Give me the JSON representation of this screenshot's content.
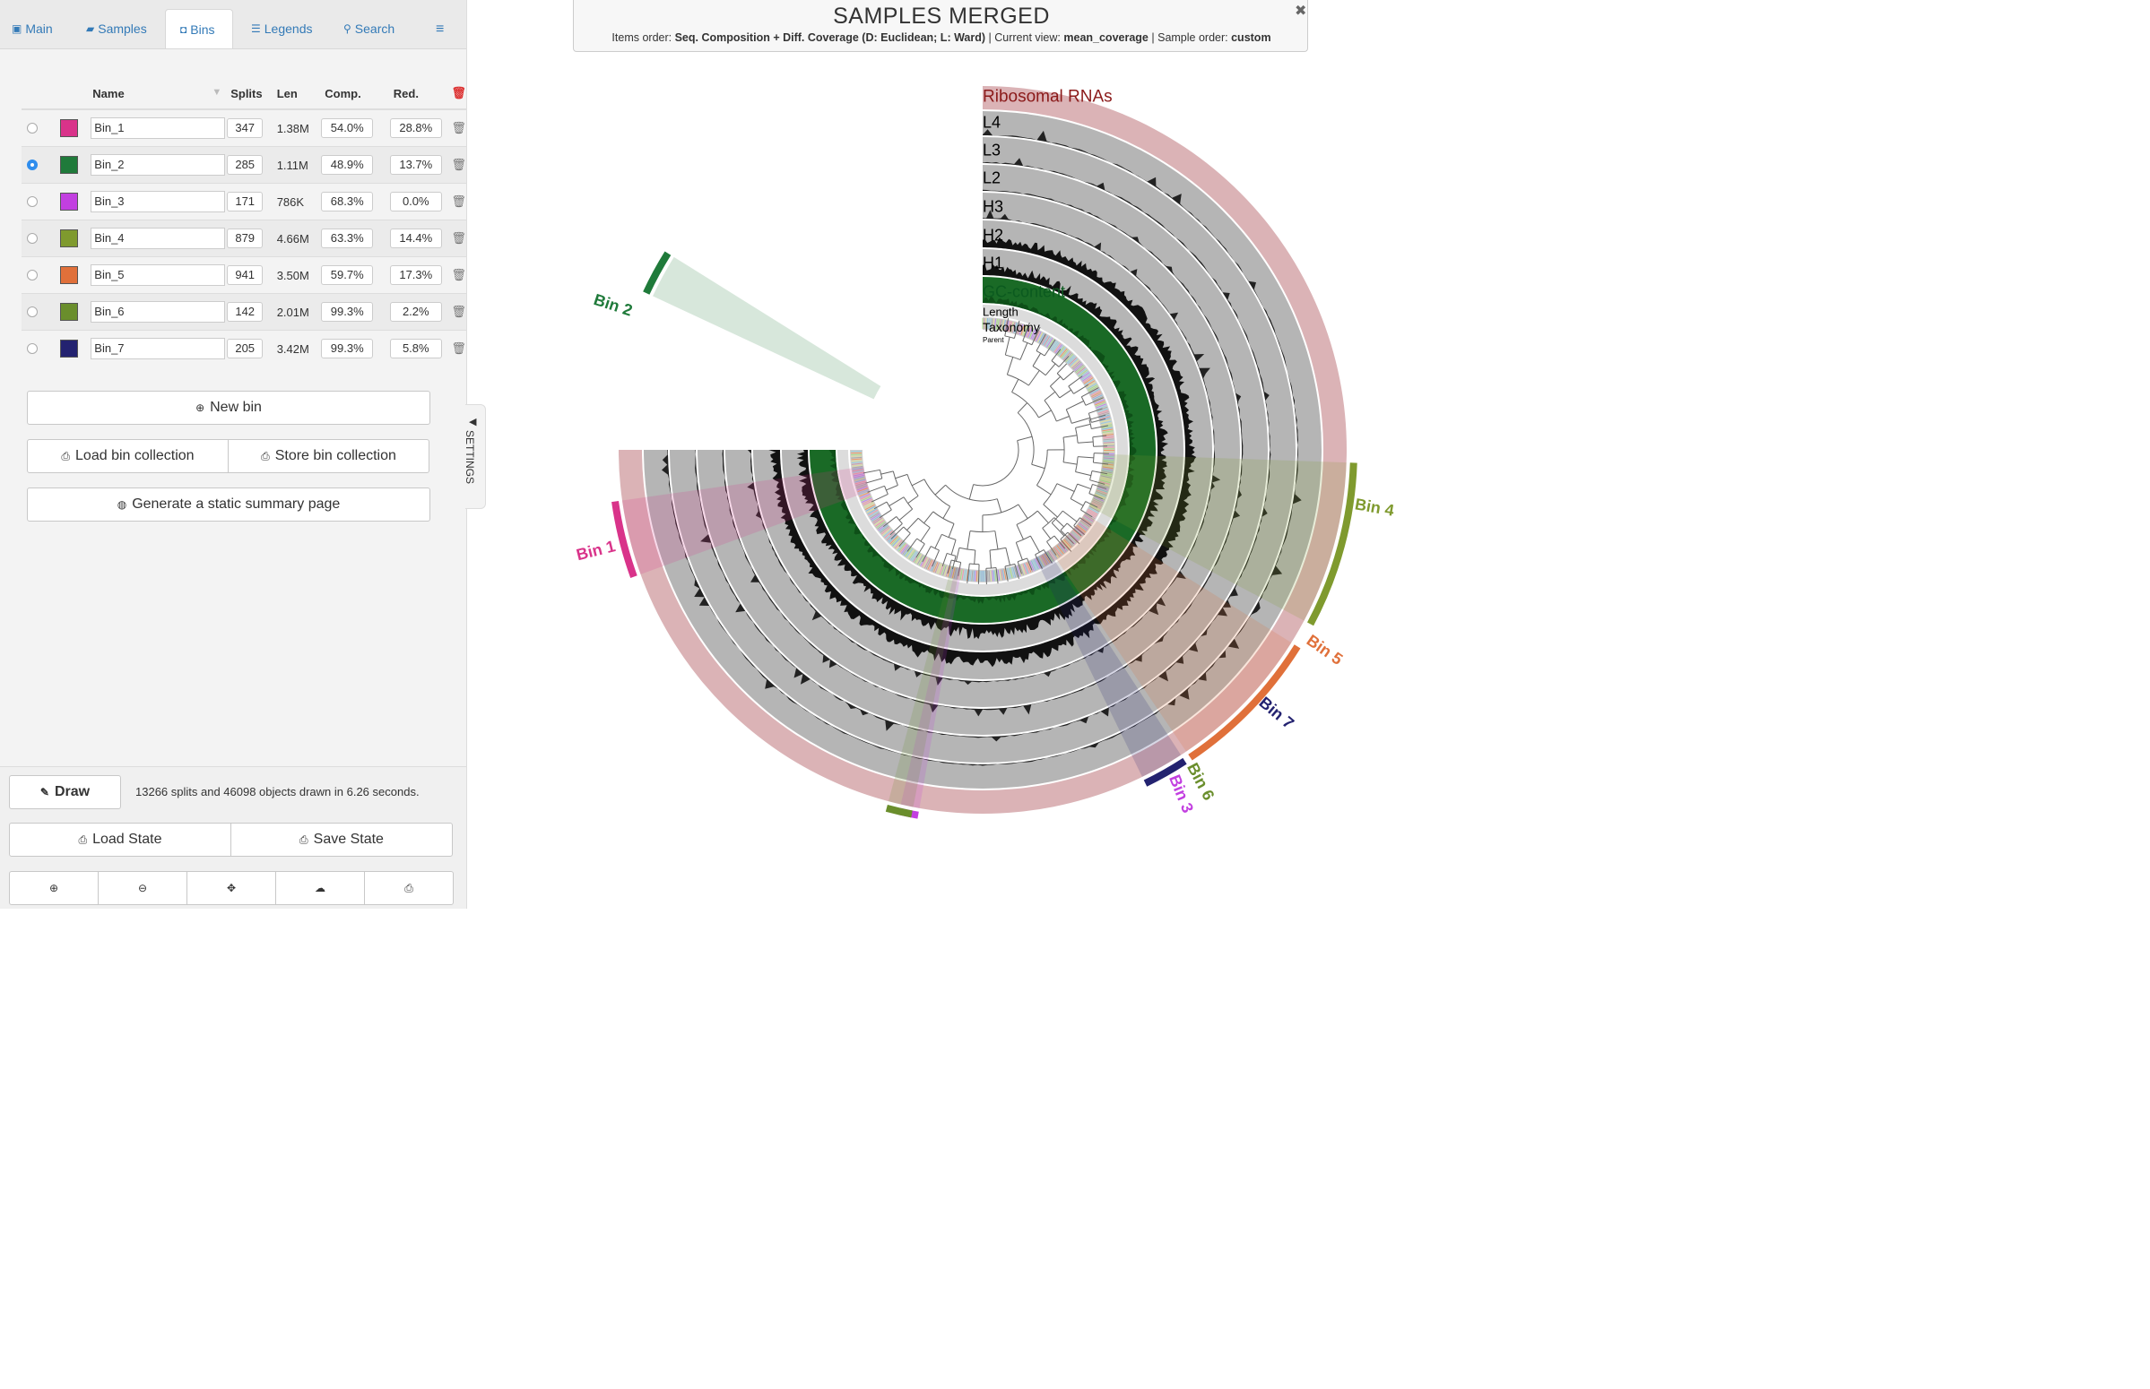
{
  "tabs": [
    {
      "label": "Main",
      "icon": "image-icon"
    },
    {
      "label": "Samples",
      "icon": "briefcase-icon"
    },
    {
      "label": "Bins",
      "icon": "bin-icon"
    },
    {
      "label": "Legends",
      "icon": "list-icon"
    },
    {
      "label": "Search",
      "icon": "search-icon"
    }
  ],
  "bins_table": {
    "headers": {
      "name": "Name",
      "splits": "Splits",
      "len": "Len",
      "comp": "Comp.",
      "red": "Red."
    },
    "rows": [
      {
        "name": "Bin_1",
        "color": "#d9338a",
        "splits": "347",
        "len": "1.38M",
        "comp": "54.0%",
        "red": "28.8%",
        "selected": false
      },
      {
        "name": "Bin_2",
        "color": "#1f7a3a",
        "splits": "285",
        "len": "1.11M",
        "comp": "48.9%",
        "red": "13.7%",
        "selected": true
      },
      {
        "name": "Bin_3",
        "color": "#c23fe0",
        "splits": "171",
        "len": "786K",
        "comp": "68.3%",
        "red": "0.0%",
        "selected": false
      },
      {
        "name": "Bin_4",
        "color": "#7f9a2e",
        "splits": "879",
        "len": "4.66M",
        "comp": "63.3%",
        "red": "14.4%",
        "selected": false
      },
      {
        "name": "Bin_5",
        "color": "#e0703a",
        "splits": "941",
        "len": "3.50M",
        "comp": "59.7%",
        "red": "17.3%",
        "selected": false
      },
      {
        "name": "Bin_6",
        "color": "#6a8e2c",
        "splits": "142",
        "len": "2.01M",
        "comp": "99.3%",
        "red": "2.2%",
        "selected": false
      },
      {
        "name": "Bin_7",
        "color": "#232270",
        "splits": "205",
        "len": "3.42M",
        "comp": "99.3%",
        "red": "5.8%",
        "selected": false
      }
    ]
  },
  "buttons": {
    "new_bin": "New bin",
    "load_collection": "Load bin collection",
    "store_collection": "Store bin collection",
    "static_summary": "Generate a static summary page",
    "draw": "Draw",
    "load_state": "Load State",
    "save_state": "Save State"
  },
  "draw_status": "13266 splits and 46098 objects drawn in 6.26 seconds.",
  "settings_label": "SETTINGS",
  "header": {
    "title": "SAMPLES MERGED",
    "items_order_label": "Items order:",
    "items_order_value": "Seq. Composition + Diff. Coverage (D: Euclidean; L: Ward)",
    "current_view_label": "Current view:",
    "current_view_value": "mean_coverage",
    "sample_order_label": "Sample order:",
    "sample_order_value": "custom"
  },
  "layers": [
    {
      "name": "Ribosomal RNAs",
      "color": "#8b1a1a"
    },
    {
      "name": "L4",
      "color": "#000000"
    },
    {
      "name": "L3",
      "color": "#000000"
    },
    {
      "name": "L2",
      "color": "#000000"
    },
    {
      "name": "H3",
      "color": "#000000"
    },
    {
      "name": "H2",
      "color": "#000000"
    },
    {
      "name": "H1",
      "color": "#000000"
    },
    {
      "name": "GC-content",
      "color": "#0b5a1f"
    },
    {
      "name": "Length",
      "color": "#000000"
    },
    {
      "name": "Taxonomy",
      "color": "#000000"
    },
    {
      "name": "Parent",
      "color": "#000000"
    }
  ],
  "bin_labels": [
    {
      "name": "Bin 2",
      "color": "#1f7a3a"
    },
    {
      "name": "Bin 1",
      "color": "#d9338a"
    },
    {
      "name": "Bin 4",
      "color": "#7f9a2e"
    },
    {
      "name": "Bin 5",
      "color": "#e0703a"
    },
    {
      "name": "Bin 7",
      "color": "#232270"
    },
    {
      "name": "Bin 6",
      "color": "#6a8e2c"
    },
    {
      "name": "Bin 3",
      "color": "#c23fe0"
    }
  ]
}
